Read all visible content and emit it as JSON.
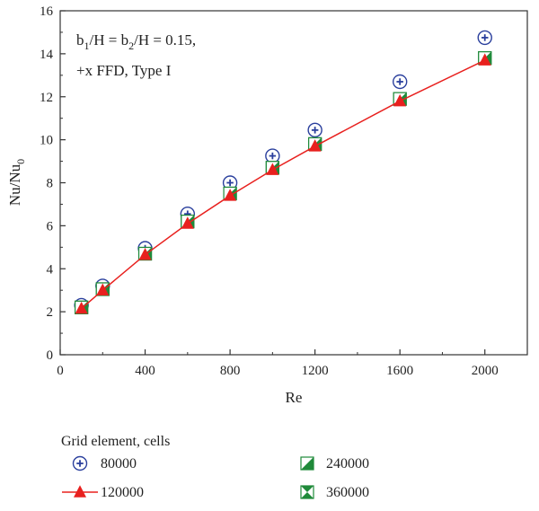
{
  "chart_data": {
    "type": "scatter",
    "xlabel": "Re",
    "ylabel_main": "Nu/Nu",
    "ylabel_sub": "0",
    "xlim": [
      0,
      2200
    ],
    "ylim": [
      0,
      16
    ],
    "xticks": [
      0,
      400,
      800,
      1200,
      1600,
      2000
    ],
    "yticks": [
      0,
      2,
      4,
      6,
      8,
      10,
      12,
      14,
      16
    ],
    "annotation_line1": {
      "p1": "b",
      "s1": "1",
      "p2": "/H = b",
      "s2": "2",
      "p3": "/H = 0.15,"
    },
    "annotation_line2": "+x FFD, Type I",
    "legend_title": "Grid element, cells",
    "grid": false,
    "legend_position": "bottom",
    "series": [
      {
        "name": "80000",
        "marker": "circle-plus",
        "color": "#2a3f9d",
        "x": [
          100,
          200,
          400,
          600,
          800,
          1000,
          1200,
          1600,
          2000
        ],
        "y": [
          2.3,
          3.2,
          4.95,
          6.55,
          8.0,
          9.25,
          10.45,
          12.7,
          14.75
        ]
      },
      {
        "name": "120000",
        "marker": "triangle-line",
        "color": "#e8201e",
        "x": [
          100,
          200,
          400,
          600,
          800,
          1000,
          1200,
          1600,
          2000
        ],
        "y": [
          2.15,
          3.0,
          4.65,
          6.1,
          7.4,
          8.6,
          9.7,
          11.8,
          13.7
        ]
      },
      {
        "name": "240000",
        "marker": "square-half",
        "color": "#1f8a3a",
        "x": [
          100,
          200,
          400,
          600,
          800,
          1000,
          1200,
          1600,
          2000
        ],
        "y": [
          2.2,
          3.05,
          4.7,
          6.2,
          7.5,
          8.7,
          9.8,
          11.9,
          13.8
        ]
      },
      {
        "name": "360000",
        "marker": "square-hourglass",
        "color": "#1f8a3a",
        "x": [
          100,
          200,
          400,
          600,
          800,
          1000,
          1200,
          1600,
          2000
        ],
        "y": [
          2.2,
          3.05,
          4.7,
          6.2,
          7.5,
          8.7,
          9.8,
          11.9,
          13.8
        ]
      }
    ]
  }
}
